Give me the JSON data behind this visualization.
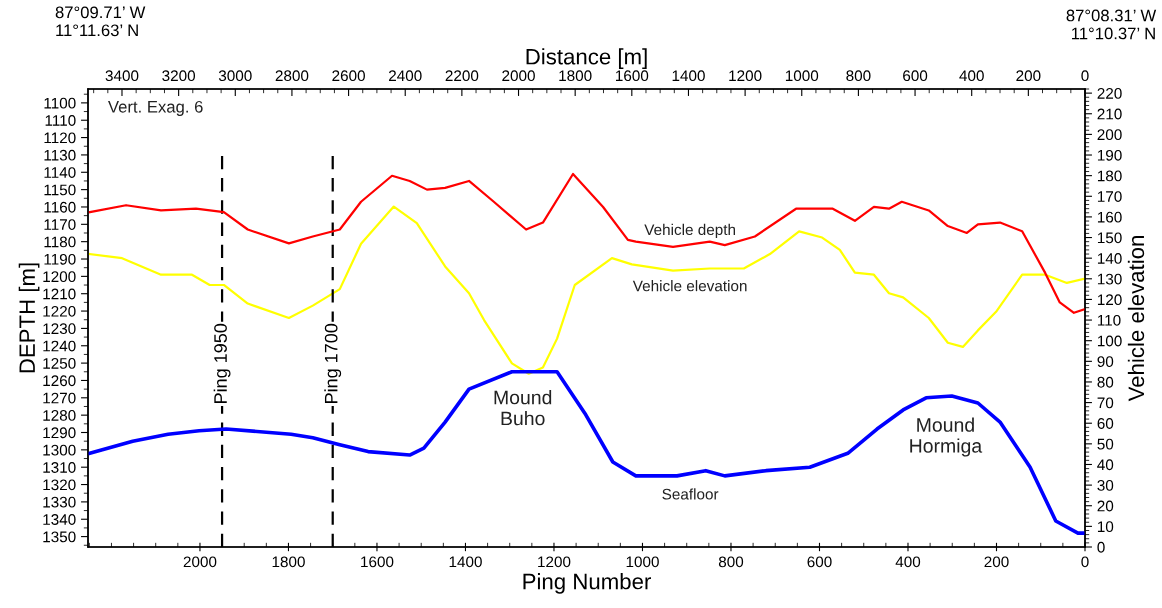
{
  "chart_data": {
    "type": "line",
    "xlabel": "Ping Number",
    "ylabel": "DEPTH [m]",
    "y2label": "Vehicle elevation",
    "x2label": "Distance [m]",
    "xlim": [
      2253,
      0
    ],
    "xticks": [
      2000,
      1800,
      1600,
      1400,
      1200,
      1000,
      800,
      600,
      400,
      200,
      0
    ],
    "x2lim": [
      3520,
      0
    ],
    "x2ticks": [
      3400,
      3200,
      3000,
      2800,
      2600,
      2400,
      2200,
      2000,
      1800,
      1600,
      1400,
      1200,
      1000,
      800,
      600,
      400,
      200,
      0
    ],
    "ylim": [
      1356,
      1092
    ],
    "yticks": [
      1100,
      1110,
      1120,
      1130,
      1140,
      1150,
      1160,
      1170,
      1180,
      1190,
      1200,
      1210,
      1220,
      1230,
      1240,
      1250,
      1260,
      1270,
      1280,
      1290,
      1300,
      1310,
      1320,
      1330,
      1340,
      1350
    ],
    "y2lim": [
      0,
      222
    ],
    "y2ticks": [
      0,
      10,
      20,
      30,
      40,
      50,
      60,
      70,
      80,
      90,
      100,
      110,
      120,
      130,
      140,
      150,
      160,
      170,
      180,
      190,
      200,
      210,
      220
    ],
    "grid": false,
    "legend": false,
    "marker": "none",
    "line_style": "solid",
    "series": [
      {
        "name": "Vehicle depth",
        "color": "#ff0000",
        "x": [
          2249,
          2167,
          2088,
          2009,
          1946,
          1892,
          1799,
          1745,
          1684,
          1636,
          1566,
          1526,
          1487,
          1446,
          1392,
          1336,
          1263,
          1225,
          1157,
          1089,
          1033,
          1015,
          931,
          848,
          814,
          746,
          653,
          570,
          520,
          477,
          443,
          414,
          353,
          310,
          267,
          242,
          192,
          142,
          90,
          57,
          25,
          2
        ],
        "values": [
          1163,
          1159,
          1162,
          1161,
          1163,
          1173,
          1181,
          1177,
          1173,
          1157,
          1142,
          1145,
          1150,
          1149,
          1145,
          1157,
          1173,
          1169,
          1141,
          1160,
          1179,
          1180,
          1183,
          1180,
          1182,
          1177,
          1161,
          1161,
          1168,
          1160,
          1161,
          1157,
          1162,
          1171,
          1175,
          1170,
          1169,
          1174,
          1198,
          1215,
          1221,
          1219
        ]
      },
      {
        "name": "Vehicle elevation",
        "color": "#ffff00",
        "axis": "y2",
        "x": [
          2249,
          2176,
          2088,
          2018,
          1978,
          1946,
          1892,
          1799,
          1745,
          1684,
          1636,
          1562,
          1510,
          1446,
          1392,
          1358,
          1295,
          1257,
          1225,
          1193,
          1153,
          1069,
          1024,
          931,
          848,
          771,
          712,
          646,
          594,
          554,
          520,
          477,
          443,
          411,
          353,
          310,
          276,
          242,
          201,
          142,
          90,
          41,
          2
        ],
        "values": [
          142,
          140,
          132,
          132,
          127,
          127,
          118,
          111,
          117,
          125,
          147,
          165,
          157,
          136,
          123,
          110,
          89,
          84,
          87,
          101,
          127,
          140,
          137,
          134,
          135,
          135,
          142,
          153,
          150,
          144,
          133,
          132,
          123,
          121,
          111,
          99,
          97,
          105,
          114,
          132,
          132,
          128,
          130
        ]
      },
      {
        "name": "Seafloor",
        "color": "#0000ff",
        "x": [
          2249,
          2152,
          2072,
          2002,
          1941,
          1794,
          1745,
          1684,
          1620,
          1526,
          1494,
          1446,
          1392,
          1295,
          1193,
          1130,
          1067,
          1015,
          922,
          857,
          814,
          721,
          622,
          536,
          470,
          411,
          359,
          301,
          242,
          192,
          124,
          66,
          16,
          0
        ],
        "values": [
          1302,
          1295,
          1291,
          1289,
          1288,
          1291,
          1293,
          1297,
          1301,
          1303,
          1299,
          1284,
          1265,
          1255,
          1255,
          1279,
          1307,
          1315,
          1315,
          1312,
          1315,
          1312,
          1310,
          1302,
          1288,
          1277,
          1270,
          1269,
          1273,
          1284,
          1310,
          1341,
          1348,
          1348
        ]
      }
    ],
    "ref_lines": [
      {
        "axis": "x",
        "value": 1950,
        "label": "Ping 1950",
        "color": "#000000",
        "line_style": "dashed"
      },
      {
        "axis": "x",
        "value": 1700,
        "label": "Ping 1700",
        "color": "#000000",
        "line_style": "dashed"
      }
    ],
    "annotations": [
      "87°09.71’ W\n11°11.63’ N",
      "87°08.31’ W\n11°10.37’ N",
      "Vert. Exag. 6",
      "Mound\nBuho",
      "Mound\nHormiga"
    ]
  }
}
